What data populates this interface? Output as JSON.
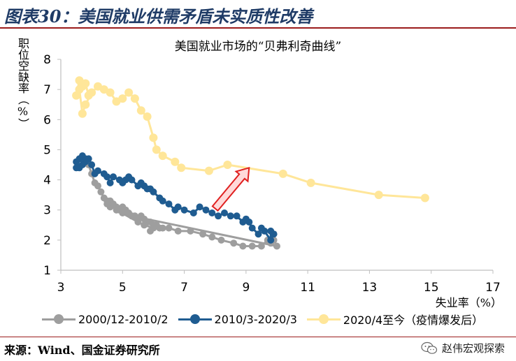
{
  "header": {
    "title": "图表30：美国就业供需矛盾未实质性改善"
  },
  "source": {
    "text": "来源：Wind、国金证券研究所"
  },
  "watermark": {
    "text": "赵伟宏观探索",
    "icon": "wechat-icon"
  },
  "chart_data": {
    "type": "scatter",
    "title": "美国就业市场的“贝弗利奇曲线”",
    "xlabel": "失业率（%）",
    "ylabel": "职位空缺率（%）",
    "xlim": [
      3,
      17
    ],
    "ylim": [
      1,
      8
    ],
    "xticks": [
      3,
      5,
      7,
      9,
      11,
      13,
      15,
      17
    ],
    "yticks": [
      1,
      2,
      3,
      4,
      5,
      6,
      7,
      8
    ],
    "grid": false,
    "legend_position": "bottom",
    "annotation": "red-arrow",
    "series": [
      {
        "name": "2000/12-2010/2",
        "color": "#9e9e9e",
        "points": [
          [
            3.9,
            4.5
          ],
          [
            4.0,
            4.2
          ],
          [
            4.1,
            3.9
          ],
          [
            4.2,
            3.8
          ],
          [
            4.3,
            3.6
          ],
          [
            4.4,
            3.4
          ],
          [
            4.5,
            3.3
          ],
          [
            4.5,
            3.2
          ],
          [
            4.6,
            3.3
          ],
          [
            4.6,
            3.1
          ],
          [
            4.7,
            3.2
          ],
          [
            4.8,
            3.1
          ],
          [
            4.9,
            3.0
          ],
          [
            5.0,
            3.1
          ],
          [
            5.1,
            3.0
          ],
          [
            5.2,
            2.9
          ],
          [
            5.3,
            2.8
          ],
          [
            5.4,
            2.8
          ],
          [
            5.5,
            2.7
          ],
          [
            5.6,
            2.8
          ],
          [
            5.7,
            2.7
          ],
          [
            5.8,
            2.6
          ],
          [
            5.9,
            2.6
          ],
          [
            6.0,
            2.5
          ],
          [
            6.1,
            2.5
          ],
          [
            6.2,
            2.4
          ],
          [
            6.3,
            2.4
          ],
          [
            6.5,
            2.4
          ],
          [
            6.8,
            2.3
          ],
          [
            7.2,
            2.3
          ],
          [
            7.6,
            2.2
          ],
          [
            7.9,
            2.1
          ],
          [
            8.2,
            2.0
          ],
          [
            8.6,
            1.9
          ],
          [
            8.9,
            1.8
          ],
          [
            9.2,
            1.8
          ],
          [
            9.5,
            1.8
          ],
          [
            9.7,
            2.0
          ],
          [
            9.8,
            1.9
          ],
          [
            9.9,
            2.0
          ],
          [
            10.0,
            1.8
          ],
          [
            5.3,
            2.8
          ],
          [
            5.0,
            2.9
          ],
          [
            4.8,
            3.0
          ],
          [
            5.5,
            2.6
          ],
          [
            5.7,
            2.5
          ],
          [
            6.0,
            2.4
          ],
          [
            5.9,
            2.3
          ]
        ]
      },
      {
        "name": "2010/3-2020/3",
        "color": "#1f5c91",
        "points": [
          [
            9.9,
            2.2
          ],
          [
            9.8,
            2.3
          ],
          [
            9.8,
            2.0
          ],
          [
            9.6,
            2.3
          ],
          [
            9.5,
            2.4
          ],
          [
            9.4,
            2.2
          ],
          [
            9.2,
            2.4
          ],
          [
            9.1,
            2.6
          ],
          [
            9.0,
            2.7
          ],
          [
            8.9,
            2.6
          ],
          [
            8.7,
            2.8
          ],
          [
            8.5,
            2.8
          ],
          [
            8.3,
            2.9
          ],
          [
            8.1,
            2.8
          ],
          [
            7.9,
            2.9
          ],
          [
            7.7,
            3.0
          ],
          [
            7.5,
            3.1
          ],
          [
            7.3,
            2.9
          ],
          [
            7.0,
            3.0
          ],
          [
            6.8,
            3.1
          ],
          [
            6.7,
            3.0
          ],
          [
            6.5,
            3.2
          ],
          [
            6.3,
            3.3
          ],
          [
            6.2,
            3.4
          ],
          [
            6.0,
            3.6
          ],
          [
            5.9,
            3.7
          ],
          [
            5.8,
            3.7
          ],
          [
            5.7,
            3.8
          ],
          [
            5.6,
            3.9
          ],
          [
            5.5,
            3.8
          ],
          [
            5.3,
            4.0
          ],
          [
            5.2,
            4.1
          ],
          [
            5.1,
            4.0
          ],
          [
            5.0,
            3.9
          ],
          [
            4.9,
            4.0
          ],
          [
            4.7,
            4.1
          ],
          [
            4.6,
            3.9
          ],
          [
            4.5,
            4.1
          ],
          [
            4.4,
            4.2
          ],
          [
            4.2,
            4.3
          ],
          [
            4.1,
            4.2
          ],
          [
            4.0,
            4.5
          ],
          [
            3.9,
            4.7
          ],
          [
            3.8,
            4.6
          ],
          [
            3.7,
            4.5
          ],
          [
            3.6,
            4.4
          ],
          [
            3.5,
            4.6
          ],
          [
            3.6,
            4.7
          ],
          [
            3.7,
            4.8
          ],
          [
            3.8,
            4.7
          ],
          [
            3.5,
            4.4
          ]
        ]
      },
      {
        "name": "2020/4至今（疫情爆发后）",
        "color": "#ffe699",
        "points": [
          [
            14.8,
            3.4
          ],
          [
            13.3,
            3.5
          ],
          [
            11.1,
            3.9
          ],
          [
            10.2,
            4.2
          ],
          [
            8.4,
            4.5
          ],
          [
            7.8,
            4.3
          ],
          [
            6.9,
            4.4
          ],
          [
            6.7,
            4.6
          ],
          [
            6.3,
            4.8
          ],
          [
            6.1,
            5.0
          ],
          [
            6.0,
            5.4
          ],
          [
            5.8,
            6.1
          ],
          [
            5.6,
            6.3
          ],
          [
            5.4,
            6.7
          ],
          [
            5.2,
            6.9
          ],
          [
            5.0,
            6.7
          ],
          [
            4.8,
            6.6
          ],
          [
            4.6,
            6.9
          ],
          [
            4.4,
            7.0
          ],
          [
            4.2,
            7.1
          ],
          [
            4.0,
            6.9
          ],
          [
            3.8,
            6.5
          ],
          [
            3.7,
            6.2
          ],
          [
            3.6,
            7.0
          ],
          [
            3.5,
            6.8
          ],
          [
            3.6,
            7.3
          ],
          [
            3.7,
            7.1
          ],
          [
            3.8,
            7.2
          ],
          [
            3.9,
            6.8
          ]
        ]
      }
    ]
  }
}
